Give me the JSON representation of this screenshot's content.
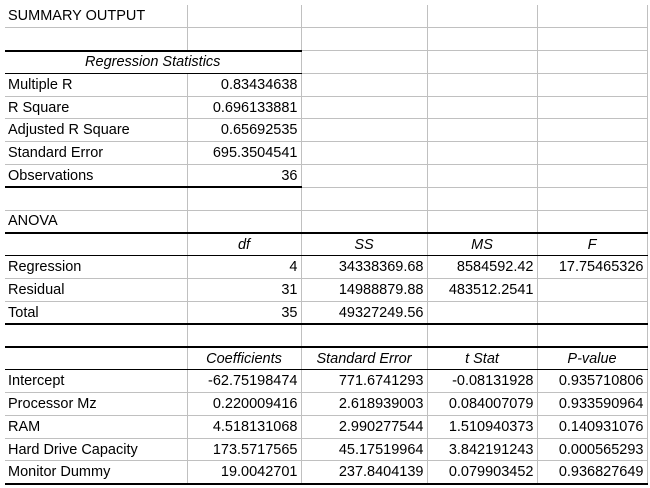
{
  "summary": {
    "title": "SUMMARY OUTPUT"
  },
  "regression_statistics": {
    "header": "Regression Statistics",
    "rows": [
      {
        "label": "Multiple R",
        "value": "0.83434638"
      },
      {
        "label": "R Square",
        "value": "0.696133881"
      },
      {
        "label": "Adjusted R Square",
        "value": "0.65692535"
      },
      {
        "label": "Standard Error",
        "value": "695.3504541"
      },
      {
        "label": "Observations",
        "value": "36"
      }
    ]
  },
  "anova": {
    "title": "ANOVA",
    "headers": [
      "df",
      "SS",
      "MS",
      "F"
    ],
    "rows": [
      {
        "label": "Regression",
        "df": "4",
        "ss": "34338369.68",
        "ms": "8584592.42",
        "f": "17.75465326"
      },
      {
        "label": "Residual",
        "df": "31",
        "ss": "14988879.88",
        "ms": "483512.2541",
        "f": ""
      },
      {
        "label": "Total",
        "df": "35",
        "ss": "49327249.56",
        "ms": "",
        "f": ""
      }
    ]
  },
  "coefficients": {
    "headers": [
      "Coefficients",
      "Standard Error",
      "t Stat",
      "P-value"
    ],
    "rows": [
      {
        "label": "Intercept",
        "coef": "-62.75198474",
        "se": "771.6741293",
        "t": "-0.08131928",
        "p": "0.935710806"
      },
      {
        "label": "Processor Mz",
        "coef": "0.220009416",
        "se": "2.618939003",
        "t": "0.084007079",
        "p": "0.933590964"
      },
      {
        "label": "RAM",
        "coef": "4.518131068",
        "se": "2.990277544",
        "t": "1.510940373",
        "p": "0.140931076"
      },
      {
        "label": "Hard Drive Capacity",
        "coef": "173.5717565",
        "se": "45.17519964",
        "t": "3.842191243",
        "p": "0.000565293"
      },
      {
        "label": "Monitor Dummy",
        "coef": "19.0042701",
        "se": "237.8404139",
        "t": "0.079903452",
        "p": "0.936827649"
      }
    ]
  }
}
